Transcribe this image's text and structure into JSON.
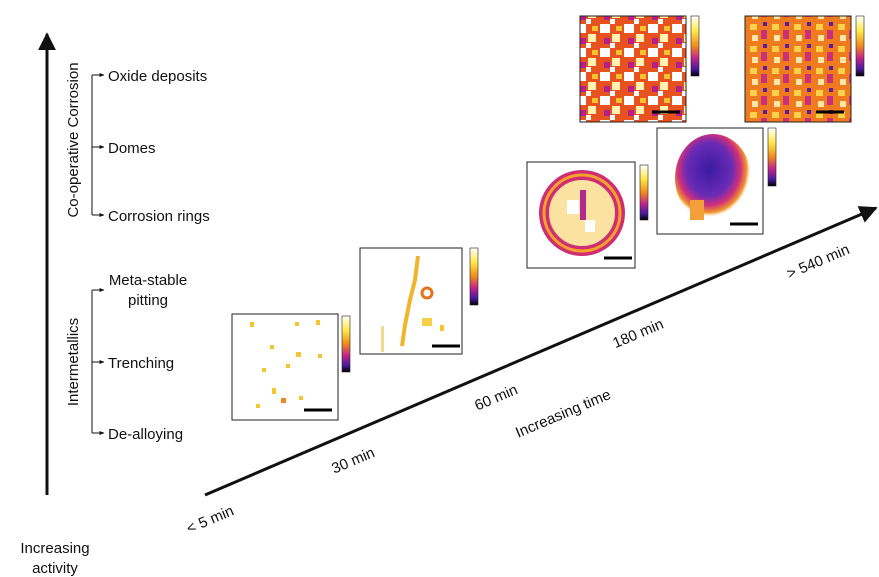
{
  "vertical_axis": {
    "label_lines": [
      "Increasing",
      "activity"
    ]
  },
  "groups": [
    {
      "label": "Co-operative Corrosion",
      "items": [
        {
          "lines": [
            "Oxide deposits"
          ]
        },
        {
          "lines": [
            "Domes"
          ]
        },
        {
          "lines": [
            "Corrosion rings"
          ]
        }
      ]
    },
    {
      "label": "Intermetallics",
      "items": [
        {
          "lines": [
            "Meta-stable",
            "pitting"
          ]
        },
        {
          "lines": [
            "Trenching"
          ]
        },
        {
          "lines": [
            "De-alloying"
          ]
        }
      ]
    }
  ],
  "time_axis": {
    "label": "Increasing time",
    "ticks": [
      "< 5 min",
      "30 min",
      "60 min",
      "180 min",
      "> 540 min"
    ]
  }
}
